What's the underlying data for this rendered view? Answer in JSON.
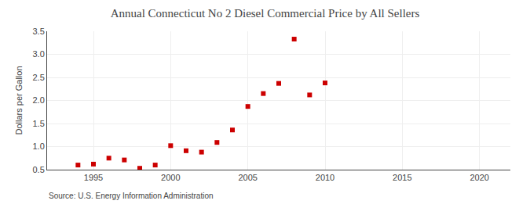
{
  "chart_data": {
    "type": "scatter",
    "title": "Annual Connecticut No 2 Diesel Commercial Price by All Sellers",
    "ylabel": "Dollars per Gallon",
    "source": "Source: U.S. Energy Information Administration",
    "x": [
      1994,
      1995,
      1996,
      1997,
      1998,
      1999,
      2000,
      2001,
      2002,
      2003,
      2004,
      2005,
      2006,
      2007,
      2008,
      2009,
      2010
    ],
    "values": [
      0.6,
      0.62,
      0.75,
      0.71,
      0.53,
      0.6,
      1.02,
      0.91,
      0.88,
      1.09,
      1.36,
      1.87,
      2.15,
      2.37,
      3.33,
      2.12,
      2.38
    ],
    "color": "#cc0000",
    "marker": "square",
    "xlim": [
      1992,
      2022
    ],
    "ylim": [
      0.5,
      3.5
    ],
    "xticks": [
      1995,
      2000,
      2005,
      2010,
      2015,
      2020
    ],
    "yticks": [
      0.5,
      {
        "value": 1.0,
        "label": "1.0"
      },
      1.5,
      {
        "value": 2.0,
        "label": "2.0"
      },
      2.5,
      {
        "value": 3.0,
        "label": "3.0"
      },
      3.5
    ],
    "grid": true
  }
}
